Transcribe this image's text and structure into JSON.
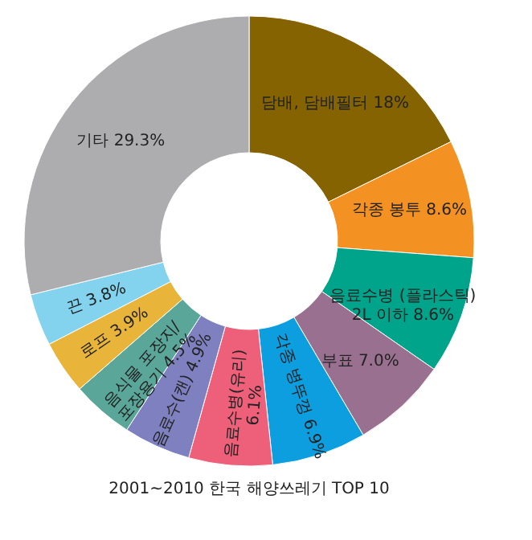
{
  "chart_data": {
    "type": "donut",
    "title": "2001~2010 한국 해양쓰레기 TOP 10",
    "categories": [
      "담배, 담배필터",
      "각종 봉투",
      "음료수병 (플라스틱)\n2L 이하",
      "부표",
      "각종 병뚜껑",
      "음료수병(유리)",
      "음료수(캔)",
      "음식물 포장지/\n포장용기",
      "로프",
      "끈",
      "기타"
    ],
    "values": [
      18,
      8.6,
      8.6,
      7.0,
      6.9,
      6.1,
      4.9,
      4.5,
      3.9,
      3.8,
      29.3
    ],
    "value_labels": [
      "18%",
      "8.6%",
      "8.6%",
      "7.0%",
      "6.9%",
      "6.1%",
      "4.9%",
      "4.5%",
      "3.9%",
      "3.8%",
      "29.3%"
    ],
    "colors": [
      "#846300",
      "#f39223",
      "#00a48a",
      "#9a7090",
      "#0d9ee0",
      "#ee6079",
      "#7e80c0",
      "#5aa79a",
      "#e8b43a",
      "#83d3ef",
      "#adadb0"
    ],
    "legend": false
  }
}
